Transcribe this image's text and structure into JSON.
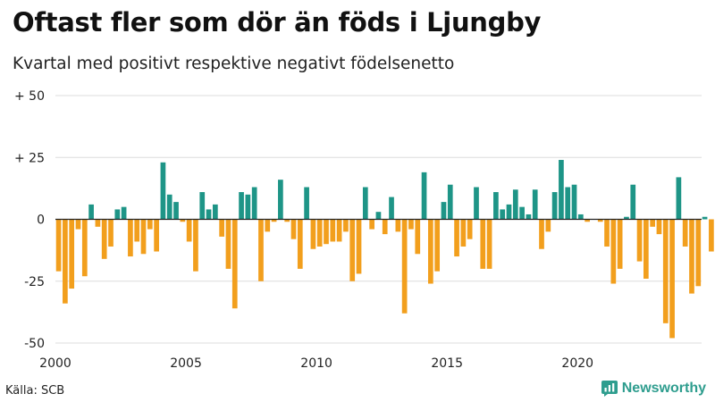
{
  "chart_data": {
    "type": "bar",
    "title": "Oftast fler som dör än föds i Ljungby",
    "subtitle": "Kvartal med positivt respektive negativt födelsenetto",
    "ylim": [
      -50,
      50
    ],
    "yticks": [
      50,
      25,
      0,
      -25,
      -50
    ],
    "ytick_labels": [
      "+ 50",
      "+ 25",
      "0",
      "-25",
      "-50"
    ],
    "xlim": [
      2000,
      2024.75
    ],
    "xticks": [
      2000,
      2005,
      2010,
      2015,
      2020
    ],
    "xtick_labels": [
      "2000",
      "2005",
      "2010",
      "2015",
      "2020"
    ],
    "start_year": 2000,
    "grid": true,
    "colors": {
      "positive": "#1e9587",
      "negative": "#f29f1d",
      "grid": "#dcdcdc",
      "zero": "#222222"
    },
    "values": [
      -21,
      -34,
      -28,
      -4,
      -23,
      6,
      -3,
      -16,
      -11,
      4,
      5,
      -15,
      -9,
      -14,
      -4,
      -13,
      23,
      10,
      7,
      -1,
      -9,
      -21,
      11,
      4,
      6,
      -7,
      -20,
      -36,
      11,
      10,
      13,
      -25,
      -5,
      -1,
      16,
      -1,
      -8,
      -20,
      13,
      -12,
      -11,
      -10,
      -9,
      -9,
      -5,
      -25,
      -22,
      13,
      -4,
      3,
      -6,
      9,
      -5,
      -38,
      -4,
      -14,
      19,
      -26,
      -21,
      7,
      14,
      -15,
      -11,
      -8,
      13,
      -20,
      -20,
      11,
      4,
      6,
      12,
      5,
      2,
      12,
      -12,
      -5,
      11,
      24,
      13,
      14,
      2,
      -1,
      0,
      -1,
      -11,
      -26,
      -20,
      1,
      14,
      -17,
      -24,
      -3,
      -6,
      -42,
      -48,
      17,
      -11,
      -30,
      -27,
      1,
      -13
    ]
  },
  "footer": {
    "source": "Källa: SCB",
    "brand": "Newsworthy",
    "brand_icon": "newsworthy-logo-icon"
  }
}
